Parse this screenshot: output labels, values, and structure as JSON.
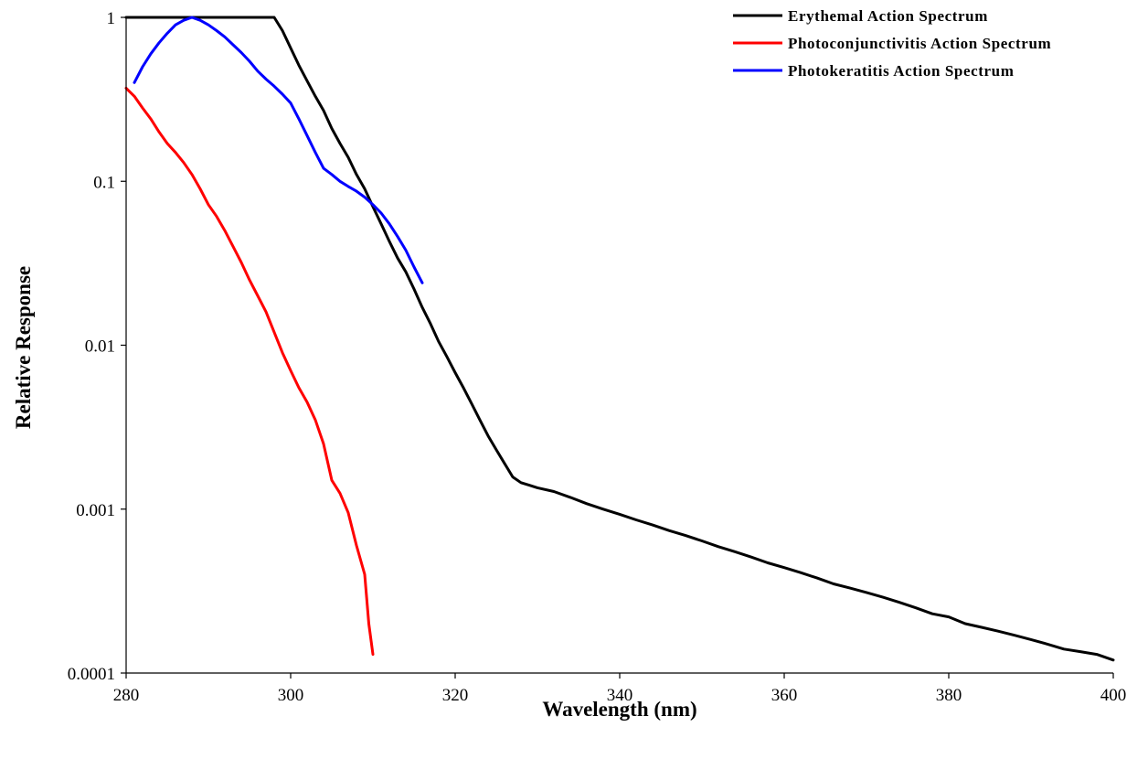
{
  "chart_data": {
    "type": "line",
    "title": "",
    "xlabel": "Wavelength (nm)",
    "ylabel": "Relative Response",
    "xlim": [
      280,
      400
    ],
    "ylim": [
      0.0001,
      1
    ],
    "yscale": "log",
    "grid": false,
    "legend_position": "top-right",
    "x_ticks": [
      280,
      300,
      320,
      340,
      360,
      380,
      400
    ],
    "x_tick_labels": [
      "280",
      "300",
      "320",
      "340",
      "360",
      "380",
      "400"
    ],
    "y_ticks": [
      0.0001,
      0.001,
      0.01,
      0.1,
      1
    ],
    "y_tick_labels": [
      "0.0001",
      "0.001",
      "0.01",
      "0.1",
      "1"
    ],
    "series": [
      {
        "name": "Erythemal Action Spectrum",
        "color": "#000000",
        "x": [
          280,
          282,
          284,
          286,
          288,
          290,
          292,
          294,
          296,
          298,
          299,
          300,
          301,
          302,
          303,
          304,
          305,
          306,
          307,
          308,
          309,
          310,
          311,
          312,
          313,
          314,
          315,
          316,
          317,
          318,
          319,
          320,
          321,
          322,
          323,
          324,
          325,
          326,
          327,
          328,
          329,
          330,
          332,
          334,
          336,
          338,
          340,
          342,
          344,
          346,
          348,
          350,
          352,
          354,
          356,
          358,
          360,
          362,
          364,
          366,
          368,
          370,
          372,
          374,
          376,
          378,
          380,
          382,
          384,
          386,
          388,
          390,
          392,
          394,
          396,
          398,
          400
        ],
        "y": [
          1,
          1,
          1,
          1,
          1,
          1,
          1,
          1,
          1,
          1,
          0.83,
          0.65,
          0.51,
          0.41,
          0.33,
          0.27,
          0.21,
          0.17,
          0.14,
          0.11,
          0.09,
          0.07,
          0.055,
          0.043,
          0.034,
          0.028,
          0.022,
          0.017,
          0.0135,
          0.0105,
          0.0085,
          0.0068,
          0.0055,
          0.0044,
          0.0035,
          0.0028,
          0.0023,
          0.0019,
          0.00157,
          0.00145,
          0.0014,
          0.00135,
          0.00128,
          0.00118,
          0.00108,
          0.001,
          0.00093,
          0.00086,
          0.0008,
          0.00074,
          0.00069,
          0.00064,
          0.00059,
          0.00055,
          0.00051,
          0.00047,
          0.00044,
          0.00041,
          0.00038,
          0.00035,
          0.00033,
          0.00031,
          0.00029,
          0.00027,
          0.00025,
          0.00023,
          0.00022,
          0.0002,
          0.00019,
          0.00018,
          0.00017,
          0.00016,
          0.00015,
          0.00014,
          0.000135,
          0.00013,
          0.00012
        ]
      },
      {
        "name": "Photoconjunctivitis Action Spectrum",
        "color": "#ff0000",
        "x": [
          280,
          281,
          282,
          283,
          284,
          285,
          286,
          287,
          288,
          289,
          290,
          291,
          292,
          293,
          294,
          295,
          296,
          297,
          298,
          299,
          300,
          301,
          302,
          303,
          304,
          305,
          306,
          307,
          308,
          309,
          309.5,
          310
        ],
        "y": [
          0.37,
          0.33,
          0.28,
          0.24,
          0.2,
          0.17,
          0.15,
          0.13,
          0.11,
          0.09,
          0.072,
          0.061,
          0.05,
          0.04,
          0.032,
          0.025,
          0.02,
          0.016,
          0.012,
          0.009,
          0.007,
          0.0055,
          0.0045,
          0.0035,
          0.0025,
          0.0015,
          0.00125,
          0.00095,
          0.0006,
          0.0004,
          0.0002,
          0.00013
        ]
      },
      {
        "name": "Photokeratitis Action Spectrum",
        "color": "#0000ff",
        "x": [
          281,
          282,
          283,
          284,
          285,
          286,
          287,
          288,
          289,
          290,
          291,
          292,
          293,
          294,
          295,
          296,
          297,
          298,
          299,
          300,
          301,
          302,
          303,
          304,
          305,
          306,
          307,
          308,
          309,
          310,
          311,
          312,
          313,
          314,
          315,
          316
        ],
        "y": [
          0.4,
          0.5,
          0.6,
          0.7,
          0.8,
          0.9,
          0.96,
          1,
          0.96,
          0.9,
          0.83,
          0.76,
          0.68,
          0.61,
          0.54,
          0.47,
          0.42,
          0.38,
          0.34,
          0.3,
          0.24,
          0.19,
          0.15,
          0.12,
          0.11,
          0.1,
          0.093,
          0.087,
          0.08,
          0.072,
          0.064,
          0.055,
          0.046,
          0.038,
          0.03,
          0.024
        ]
      }
    ]
  }
}
